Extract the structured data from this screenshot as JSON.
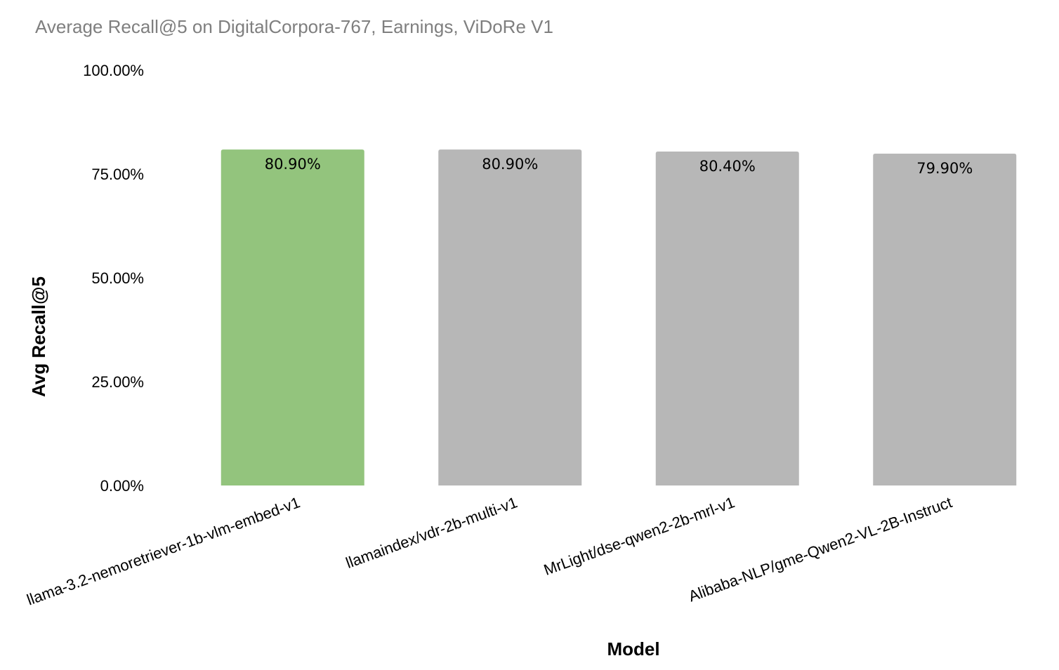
{
  "chart_data": {
    "type": "bar",
    "title": "Average Recall@5 on DigitalCorpora-767, Earnings, ViDoRe V1",
    "xlabel": "Model",
    "ylabel": "Avg Recall@5",
    "categories": [
      "llama-3.2-nemoretriever-1b-vlm-embed-v1",
      "llamaindex/vdr-2b-multi-v1",
      "MrLight/dse-qwen2-2b-mrl-v1",
      "Alibaba-NLP/gme-Qwen2-VL-2B-Instruct"
    ],
    "values": [
      80.9,
      80.9,
      80.4,
      79.9
    ],
    "data_labels": [
      "80.90%",
      "80.90%",
      "80.40%",
      "79.90%"
    ],
    "ylim": [
      0,
      100
    ],
    "yticks": [
      0,
      25,
      50,
      75,
      100
    ],
    "ytick_labels": [
      "0.00%",
      "25.00%",
      "50.00%",
      "75.00%",
      "100.00%"
    ],
    "grid": false,
    "legend": "none",
    "colors": {
      "highlight": "#93c47d",
      "default": "#b7b7b7",
      "title": "#7f7f7f"
    },
    "bar_colors": [
      "#93c47d",
      "#b7b7b7",
      "#b7b7b7",
      "#b7b7b7"
    ]
  }
}
